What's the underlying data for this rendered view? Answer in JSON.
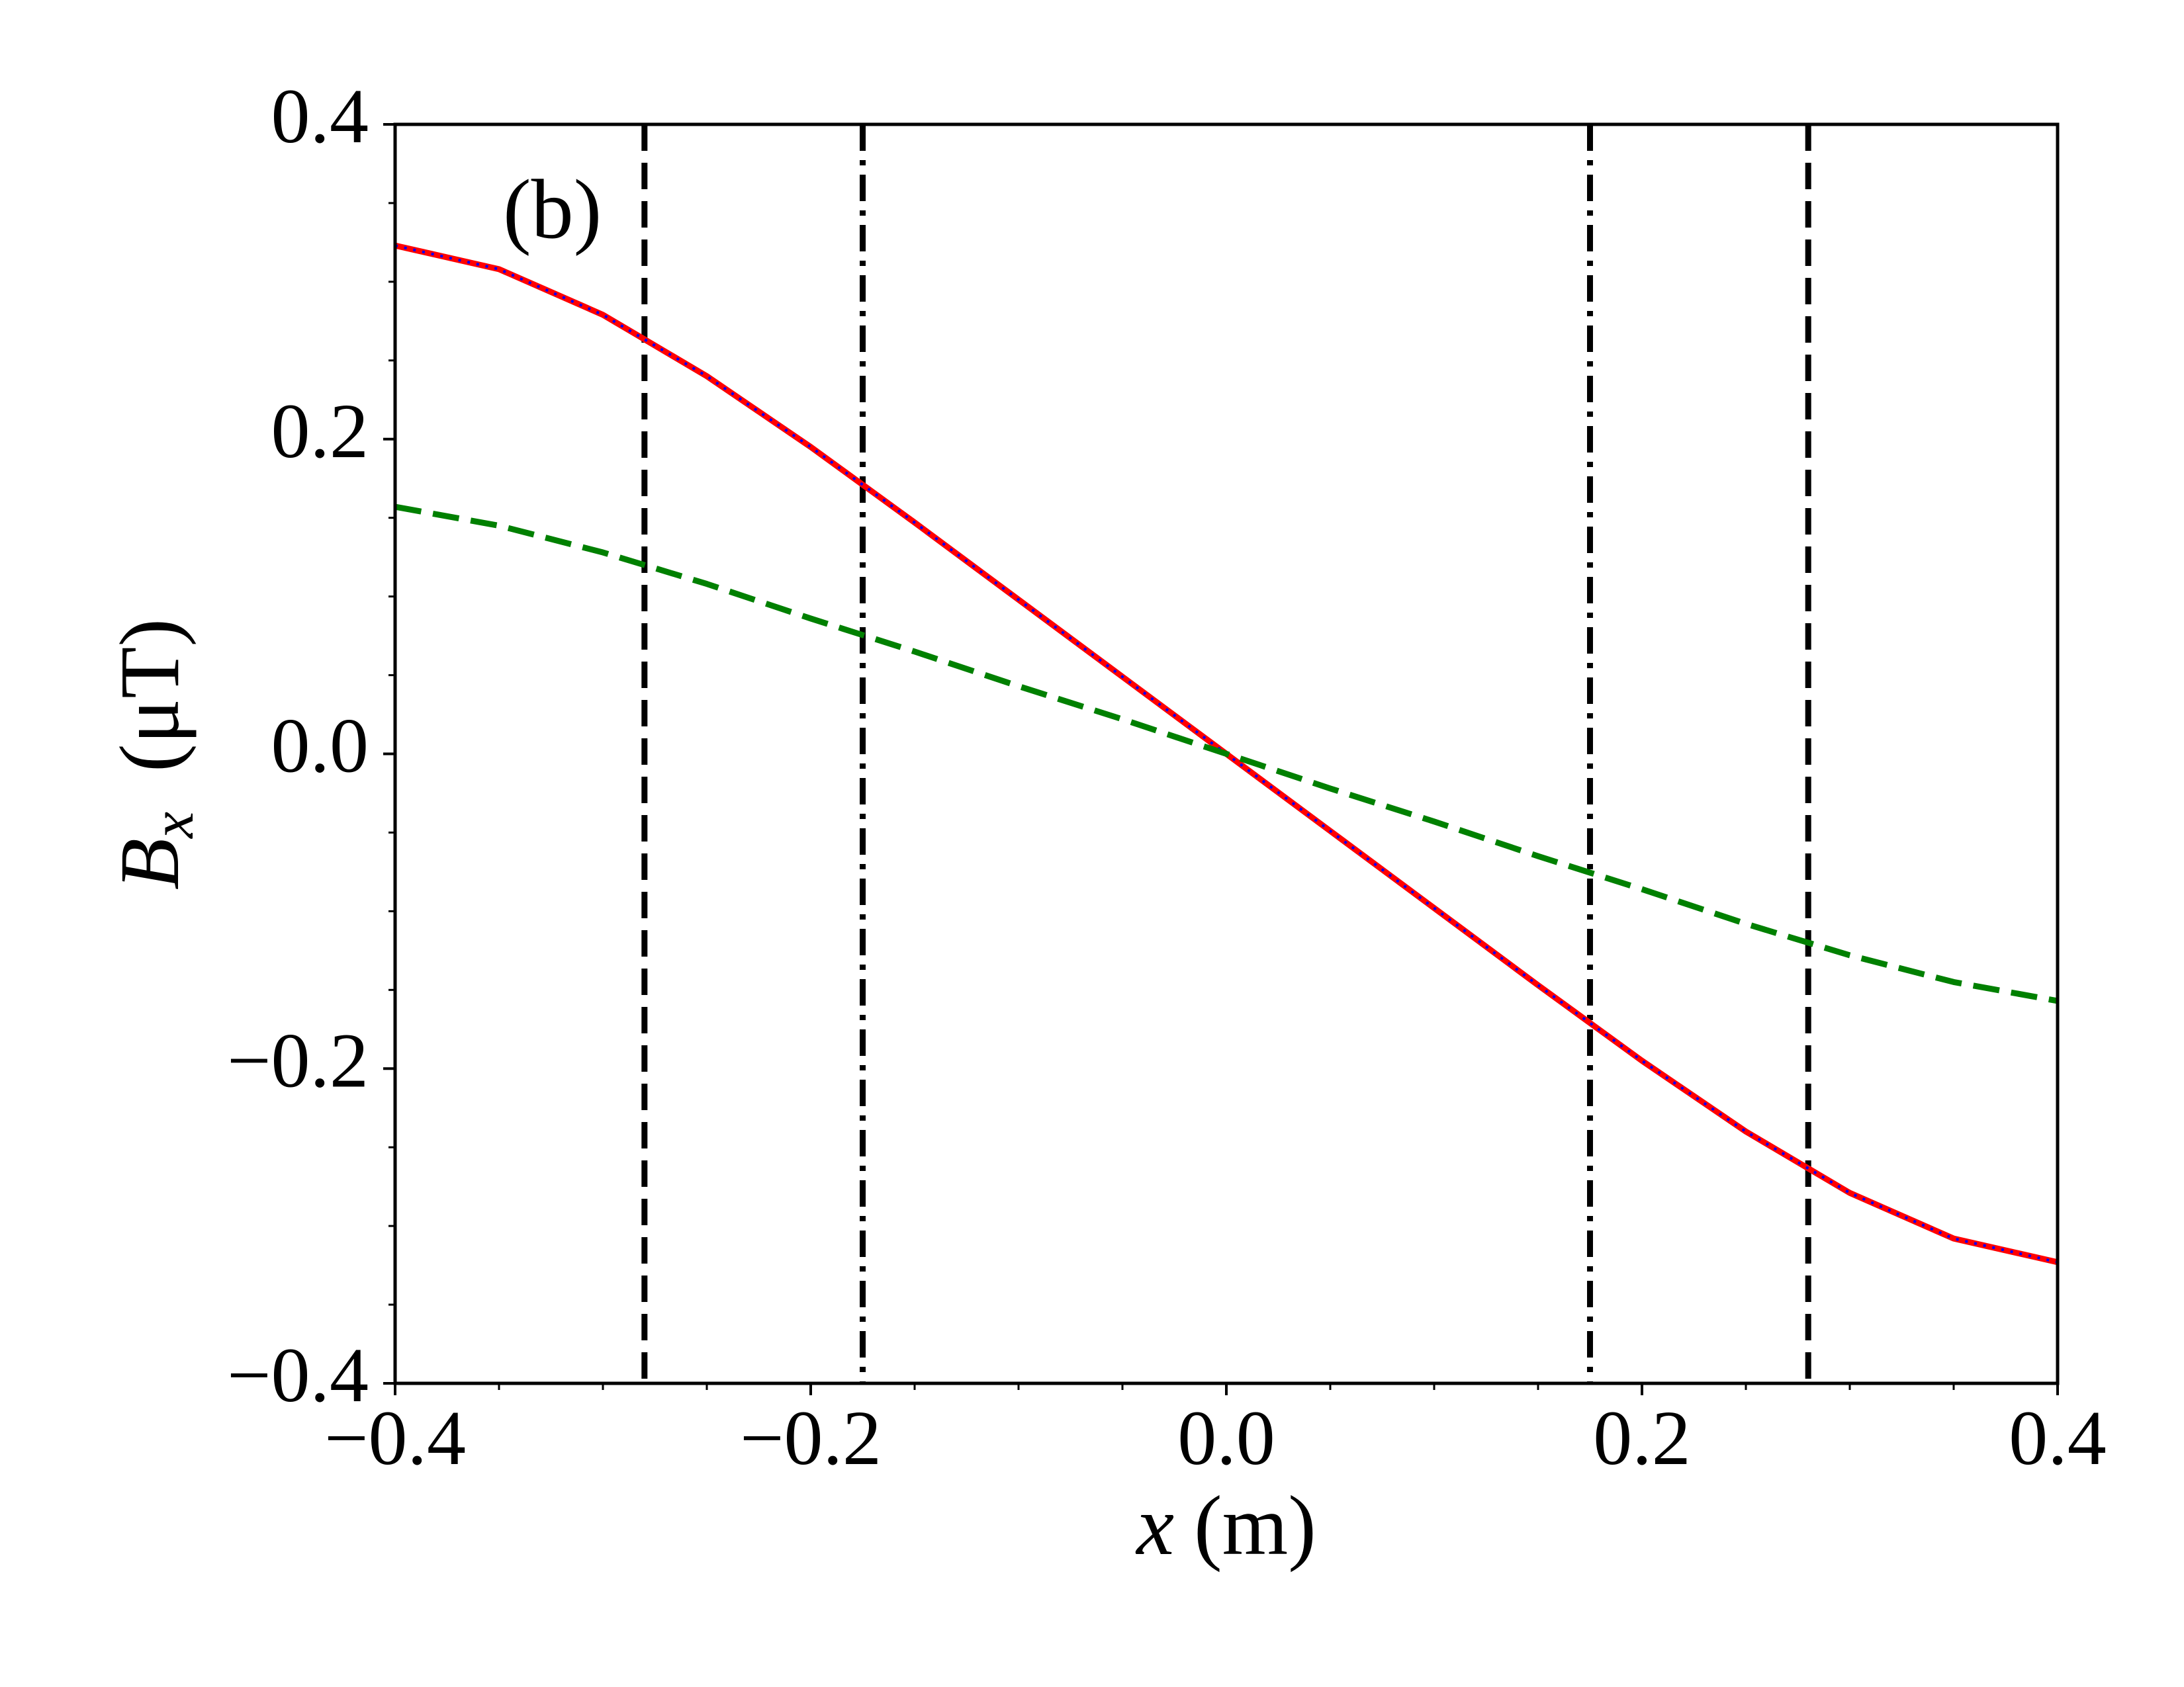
{
  "chart_data": {
    "type": "line",
    "annotation": "(b)",
    "xlabel": {
      "symbol": "x",
      "unit": "(m)"
    },
    "ylabel": {
      "symbol": "B",
      "subscript": "x",
      "unit": "(μT)"
    },
    "x": [
      -0.4,
      -0.35,
      -0.3,
      -0.25,
      -0.2,
      -0.15,
      -0.1,
      -0.05,
      0,
      0.05,
      0.1,
      0.15,
      0.2,
      0.25,
      0.3,
      0.35,
      0.4
    ],
    "series": [
      {
        "color": "#ff0000",
        "style": "solid",
        "values": [
          0.323,
          0.308,
          0.279,
          0.24,
          0.195,
          0.147,
          0.098,
          0.049,
          0,
          -0.049,
          -0.098,
          -0.147,
          -0.195,
          -0.24,
          -0.279,
          -0.308,
          -0.323
        ]
      },
      {
        "color": "#0000ff",
        "style": "dotted",
        "values": [
          0.323,
          0.308,
          0.279,
          0.24,
          0.195,
          0.147,
          0.098,
          0.049,
          0,
          -0.049,
          -0.098,
          -0.147,
          -0.195,
          -0.24,
          -0.279,
          -0.308,
          -0.323
        ]
      },
      {
        "color": "#008000",
        "style": "dashed",
        "values": [
          0.157,
          0.145,
          0.128,
          0.108,
          0.086,
          0.065,
          0.043,
          0.022,
          0,
          -0.022,
          -0.043,
          -0.065,
          -0.086,
          -0.108,
          -0.128,
          -0.145,
          -0.157
        ]
      }
    ],
    "vlines": [
      {
        "x": -0.28,
        "style": "dashed"
      },
      {
        "x": -0.175,
        "style": "dashdot"
      },
      {
        "x": 0.175,
        "style": "dashdot"
      },
      {
        "x": 0.28,
        "style": "dashed"
      }
    ],
    "xlim": [
      -0.4,
      0.4
    ],
    "ylim": [
      -0.4,
      0.4
    ],
    "xticks": [
      {
        "value": -0.4,
        "label": "−0.4"
      },
      {
        "value": -0.2,
        "label": "−0.2"
      },
      {
        "value": 0,
        "label": "0.0"
      },
      0.2,
      0.4
    ],
    "yticks": [
      {
        "value": -0.4,
        "label": "−0.4"
      },
      {
        "value": -0.2,
        "label": "−0.2"
      },
      {
        "value": 0,
        "label": "0.0"
      },
      0.2,
      0.4
    ],
    "xminorticks": [
      -0.35,
      -0.3,
      -0.25,
      -0.15,
      -0.1,
      -0.05,
      0.05,
      0.1,
      0.15,
      0.25,
      0.3,
      0.35
    ],
    "yminorticks": [
      -0.35,
      -0.3,
      -0.25,
      -0.15,
      -0.1,
      -0.05,
      0.05,
      0.1,
      0.15,
      0.25,
      0.3,
      0.35
    ]
  }
}
